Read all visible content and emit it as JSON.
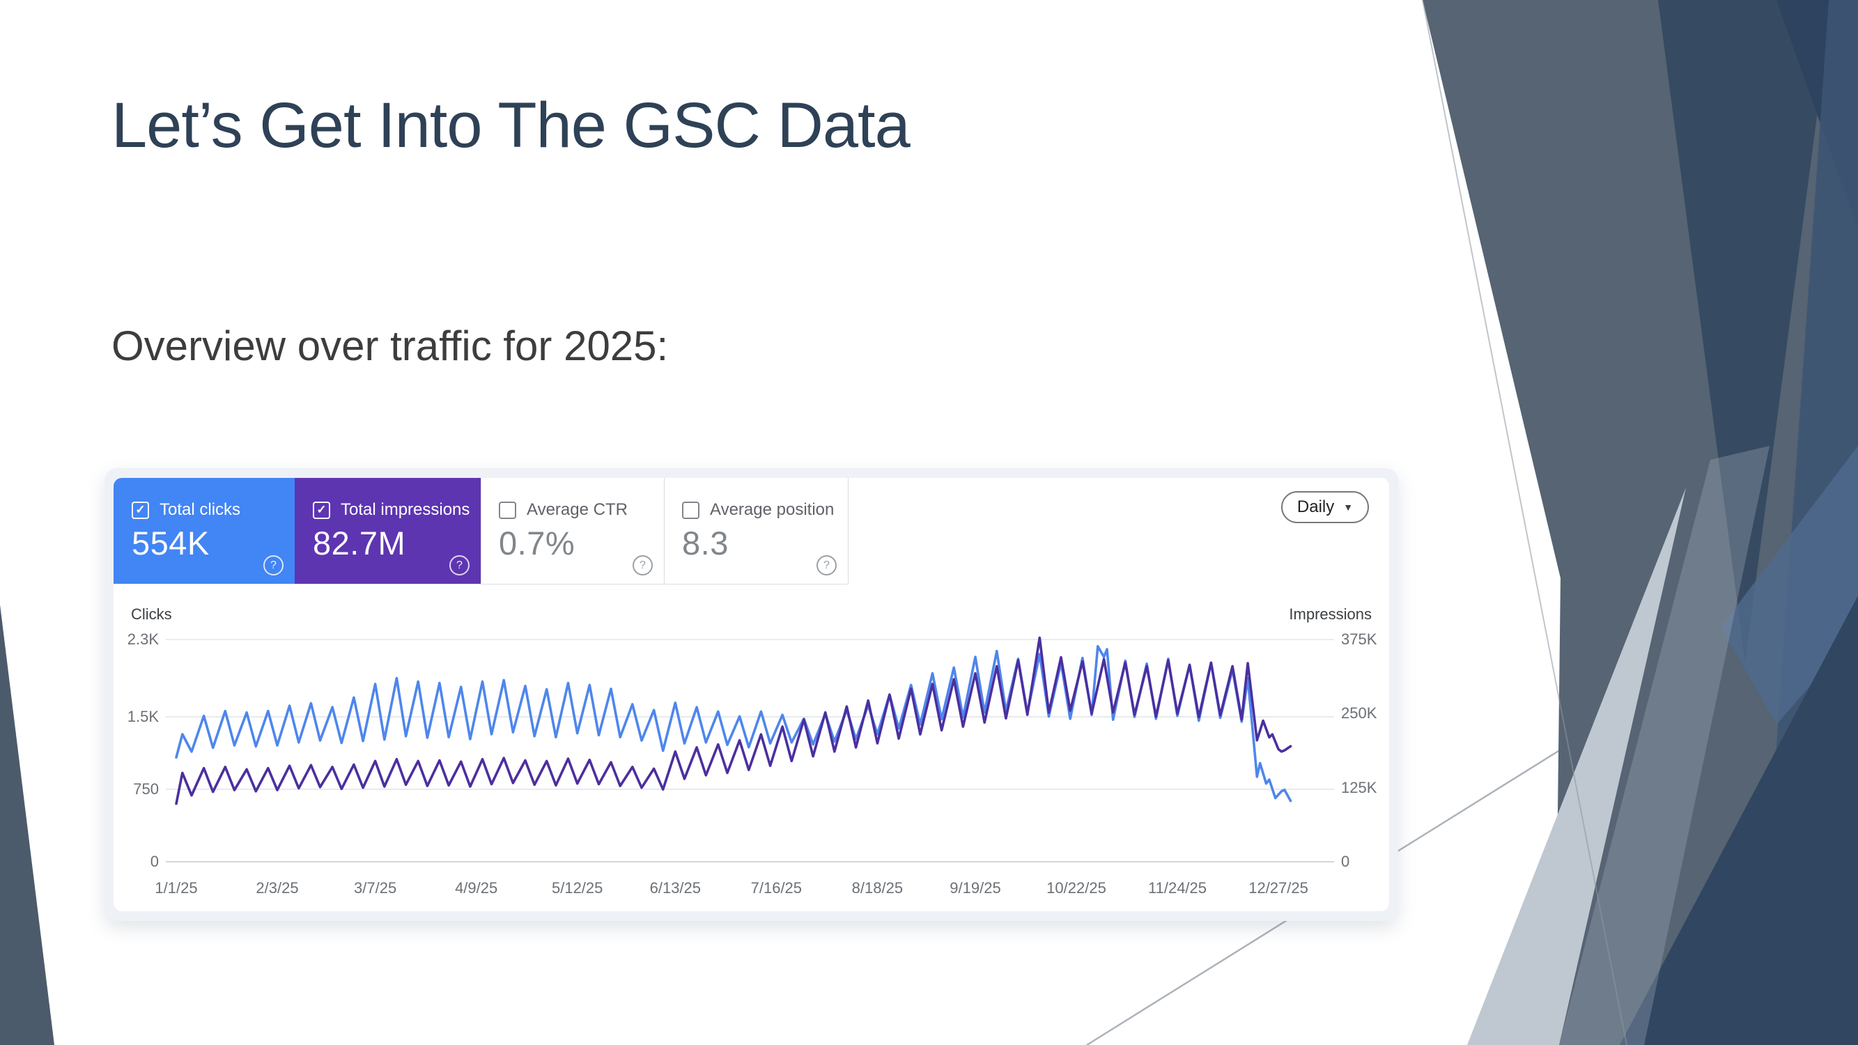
{
  "slide": {
    "title": "Let’s Get Into The GSC Data",
    "subtitle": "Overview over traffic for 2025:",
    "title_color": "#2e4156",
    "accent_colors": {
      "facet_slate": "#566473",
      "facet_navy": "#2f4560",
      "facet_blue": "#3d5573",
      "facet_light": "#bfc7d1"
    }
  },
  "gsc": {
    "metric_tabs": [
      {
        "label": "Total clicks",
        "value": "554K",
        "selected": true,
        "color": "#4285f4",
        "checkbox": "checked",
        "help_icon": "question-circle"
      },
      {
        "label": "Total impressions",
        "value": "82.7M",
        "selected": true,
        "color": "#5e35b1",
        "checkbox": "checked",
        "help_icon": "question-circle"
      },
      {
        "label": "Average CTR",
        "value": "0.7%",
        "selected": false,
        "color": "#ffffff",
        "checkbox": "unchecked",
        "help_icon": "question-circle"
      },
      {
        "label": "Average position",
        "value": "8.3",
        "selected": false,
        "color": "#ffffff",
        "checkbox": "unchecked",
        "help_icon": "question-circle"
      }
    ],
    "period_selector": {
      "label": "Daily",
      "icon": "chevron-down"
    }
  },
  "chart_data": {
    "type": "line",
    "title": "",
    "grid": true,
    "legend_position": "none",
    "x_axis": {
      "unit": "day of 2025",
      "range_days": [
        0,
        364
      ],
      "ticks": [
        {
          "label": "1/1/25",
          "day": 0
        },
        {
          "label": "2/3/25",
          "day": 33
        },
        {
          "label": "3/7/25",
          "day": 65
        },
        {
          "label": "4/9/25",
          "day": 98
        },
        {
          "label": "5/12/25",
          "day": 131
        },
        {
          "label": "6/13/25",
          "day": 163
        },
        {
          "label": "7/16/25",
          "day": 196
        },
        {
          "label": "8/18/25",
          "day": 229
        },
        {
          "label": "9/19/25",
          "day": 261
        },
        {
          "label": "10/22/25",
          "day": 294
        },
        {
          "label": "11/24/25",
          "day": 327
        },
        {
          "label": "12/27/25",
          "day": 360
        }
      ]
    },
    "left_axis": {
      "label": "Clicks",
      "max": 2300,
      "ticks": [
        {
          "label": "2.3K",
          "value": 2300
        },
        {
          "label": "1.5K",
          "value": 1500
        },
        {
          "label": "750",
          "value": 750
        },
        {
          "label": "0",
          "value": 0
        }
      ]
    },
    "right_axis": {
      "label": "Impressions",
      "unit": "thousands",
      "max": 375,
      "ticks": [
        {
          "label": "375K",
          "value": 375
        },
        {
          "label": "250K",
          "value": 250
        },
        {
          "label": "125K",
          "value": 125
        },
        {
          "label": "0",
          "value": 0
        }
      ]
    },
    "series": [
      {
        "name": "Total clicks",
        "axis": "left",
        "color": "#4e86ec",
        "points": [
          [
            0,
            1080
          ],
          [
            2,
            1320
          ],
          [
            5,
            1140
          ],
          [
            9,
            1510
          ],
          [
            12,
            1180
          ],
          [
            16,
            1560
          ],
          [
            19,
            1205
          ],
          [
            23,
            1545
          ],
          [
            26,
            1195
          ],
          [
            30,
            1560
          ],
          [
            33,
            1205
          ],
          [
            37,
            1615
          ],
          [
            40,
            1235
          ],
          [
            44,
            1640
          ],
          [
            47,
            1255
          ],
          [
            51,
            1600
          ],
          [
            54,
            1230
          ],
          [
            58,
            1700
          ],
          [
            61,
            1250
          ],
          [
            65,
            1840
          ],
          [
            68,
            1265
          ],
          [
            72,
            1900
          ],
          [
            75,
            1300
          ],
          [
            79,
            1865
          ],
          [
            82,
            1285
          ],
          [
            86,
            1850
          ],
          [
            89,
            1290
          ],
          [
            93,
            1810
          ],
          [
            96,
            1270
          ],
          [
            100,
            1865
          ],
          [
            103,
            1320
          ],
          [
            107,
            1880
          ],
          [
            110,
            1340
          ],
          [
            114,
            1820
          ],
          [
            117,
            1300
          ],
          [
            121,
            1785
          ],
          [
            124,
            1290
          ],
          [
            128,
            1850
          ],
          [
            131,
            1330
          ],
          [
            135,
            1830
          ],
          [
            138,
            1310
          ],
          [
            142,
            1790
          ],
          [
            145,
            1290
          ],
          [
            149,
            1630
          ],
          [
            152,
            1255
          ],
          [
            156,
            1570
          ],
          [
            159,
            1150
          ],
          [
            163,
            1645
          ],
          [
            166,
            1225
          ],
          [
            170,
            1600
          ],
          [
            173,
            1235
          ],
          [
            177,
            1555
          ],
          [
            180,
            1210
          ],
          [
            184,
            1505
          ],
          [
            187,
            1185
          ],
          [
            191,
            1555
          ],
          [
            194,
            1225
          ],
          [
            198,
            1520
          ],
          [
            201,
            1235
          ],
          [
            205,
            1480
          ],
          [
            208,
            1215
          ],
          [
            212,
            1530
          ],
          [
            215,
            1245
          ],
          [
            219,
            1570
          ],
          [
            222,
            1270
          ],
          [
            226,
            1620
          ],
          [
            229,
            1320
          ],
          [
            233,
            1730
          ],
          [
            236,
            1380
          ],
          [
            240,
            1830
          ],
          [
            243,
            1420
          ],
          [
            247,
            1950
          ],
          [
            250,
            1475
          ],
          [
            254,
            2010
          ],
          [
            257,
            1495
          ],
          [
            261,
            2120
          ],
          [
            264,
            1545
          ],
          [
            268,
            2180
          ],
          [
            271,
            1560
          ],
          [
            275,
            2100
          ],
          [
            278,
            1540
          ],
          [
            282,
            2150
          ],
          [
            285,
            1505
          ],
          [
            289,
            2060
          ],
          [
            292,
            1480
          ],
          [
            296,
            2110
          ],
          [
            299,
            1520
          ],
          [
            301,
            2230
          ],
          [
            303,
            2120
          ],
          [
            304,
            2200
          ],
          [
            306,
            1470
          ],
          [
            310,
            2080
          ],
          [
            313,
            1500
          ],
          [
            317,
            2050
          ],
          [
            320,
            1480
          ],
          [
            324,
            2100
          ],
          [
            327,
            1510
          ],
          [
            331,
            2040
          ],
          [
            334,
            1460
          ],
          [
            338,
            2060
          ],
          [
            341,
            1490
          ],
          [
            345,
            1990
          ],
          [
            348,
            1450
          ],
          [
            350,
            1900
          ],
          [
            353,
            880
          ],
          [
            354,
            1020
          ],
          [
            356,
            810
          ],
          [
            357,
            850
          ],
          [
            359,
            660
          ],
          [
            361,
            730
          ],
          [
            362,
            745
          ],
          [
            364,
            630
          ]
        ]
      },
      {
        "name": "Total impressions",
        "axis": "right",
        "color": "#4b2f9f",
        "unit": "thousands",
        "points": [
          [
            0,
            98
          ],
          [
            2,
            150
          ],
          [
            5,
            112
          ],
          [
            9,
            158
          ],
          [
            12,
            118
          ],
          [
            16,
            160
          ],
          [
            19,
            121
          ],
          [
            23,
            156
          ],
          [
            26,
            119
          ],
          [
            30,
            158
          ],
          [
            33,
            121
          ],
          [
            37,
            162
          ],
          [
            40,
            124
          ],
          [
            44,
            163
          ],
          [
            47,
            126
          ],
          [
            51,
            160
          ],
          [
            54,
            123
          ],
          [
            58,
            164
          ],
          [
            61,
            125
          ],
          [
            65,
            170
          ],
          [
            68,
            127
          ],
          [
            72,
            173
          ],
          [
            75,
            130
          ],
          [
            79,
            170
          ],
          [
            82,
            128
          ],
          [
            86,
            171
          ],
          [
            89,
            129
          ],
          [
            93,
            169
          ],
          [
            96,
            127
          ],
          [
            100,
            173
          ],
          [
            103,
            131
          ],
          [
            107,
            175
          ],
          [
            110,
            133
          ],
          [
            114,
            171
          ],
          [
            117,
            130
          ],
          [
            121,
            170
          ],
          [
            124,
            129
          ],
          [
            128,
            174
          ],
          [
            131,
            132
          ],
          [
            135,
            172
          ],
          [
            138,
            131
          ],
          [
            142,
            168
          ],
          [
            145,
            128
          ],
          [
            149,
            160
          ],
          [
            152,
            125
          ],
          [
            156,
            157
          ],
          [
            159,
            122
          ],
          [
            163,
            186
          ],
          [
            166,
            140
          ],
          [
            170,
            193
          ],
          [
            173,
            146
          ],
          [
            177,
            198
          ],
          [
            180,
            150
          ],
          [
            184,
            205
          ],
          [
            187,
            155
          ],
          [
            191,
            215
          ],
          [
            194,
            162
          ],
          [
            198,
            228
          ],
          [
            201,
            170
          ],
          [
            205,
            240
          ],
          [
            208,
            178
          ],
          [
            212,
            252
          ],
          [
            215,
            186
          ],
          [
            219,
            262
          ],
          [
            222,
            193
          ],
          [
            226,
            272
          ],
          [
            229,
            200
          ],
          [
            233,
            282
          ],
          [
            236,
            208
          ],
          [
            240,
            292
          ],
          [
            243,
            215
          ],
          [
            247,
            300
          ],
          [
            250,
            222
          ],
          [
            254,
            308
          ],
          [
            257,
            228
          ],
          [
            261,
            318
          ],
          [
            264,
            235
          ],
          [
            268,
            330
          ],
          [
            271,
            242
          ],
          [
            275,
            340
          ],
          [
            278,
            248
          ],
          [
            282,
            378
          ],
          [
            285,
            252
          ],
          [
            289,
            345
          ],
          [
            292,
            255
          ],
          [
            296,
            338
          ],
          [
            299,
            250
          ],
          [
            303,
            342
          ],
          [
            306,
            252
          ],
          [
            310,
            336
          ],
          [
            313,
            248
          ],
          [
            317,
            330
          ],
          [
            320,
            245
          ],
          [
            324,
            340
          ],
          [
            327,
            250
          ],
          [
            331,
            332
          ],
          [
            334,
            244
          ],
          [
            338,
            336
          ],
          [
            341,
            247
          ],
          [
            345,
            330
          ],
          [
            348,
            240
          ],
          [
            350,
            335
          ],
          [
            353,
            205
          ],
          [
            355,
            238
          ],
          [
            357,
            210
          ],
          [
            358,
            215
          ],
          [
            360,
            190
          ],
          [
            361,
            186
          ],
          [
            362,
            188
          ],
          [
            364,
            195
          ]
        ]
      }
    ]
  }
}
